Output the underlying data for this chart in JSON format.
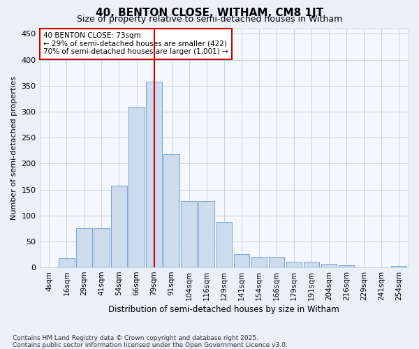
{
  "title": "40, BENTON CLOSE, WITHAM, CM8 1JT",
  "subtitle": "Size of property relative to semi-detached houses in Witham",
  "xlabel": "Distribution of semi-detached houses by size in Witham",
  "ylabel": "Number of semi-detached properties",
  "categories": [
    "4sqm",
    "16sqm",
    "29sqm",
    "41sqm",
    "54sqm",
    "66sqm",
    "79sqm",
    "91sqm",
    "104sqm",
    "116sqm",
    "129sqm",
    "141sqm",
    "154sqm",
    "166sqm",
    "179sqm",
    "191sqm",
    "204sqm",
    "216sqm",
    "229sqm",
    "241sqm",
    "254sqm"
  ],
  "values": [
    0,
    18,
    75,
    75,
    158,
    310,
    358,
    218,
    128,
    128,
    87,
    25,
    20,
    20,
    11,
    11,
    7,
    4,
    0,
    0,
    3
  ],
  "bar_color": "#ccdcec",
  "bar_edge_color": "#6699cc",
  "vline_x": 6.0,
  "vline_color": "#cc0000",
  "annotation_text": "40 BENTON CLOSE: 73sqm\n← 29% of semi-detached houses are smaller (422)\n70% of semi-detached houses are larger (1,001) →",
  "ylim": [
    0,
    460
  ],
  "yticks": [
    0,
    50,
    100,
    150,
    200,
    250,
    300,
    350,
    400,
    450
  ],
  "footnote": "Contains HM Land Registry data © Crown copyright and database right 2025.\nContains public sector information licensed under the Open Government Licence v3.0.",
  "background_color": "#eaf0f6",
  "plot_background_color": "#f4f8fc",
  "grid_color": "#b8cfe0",
  "title_fontsize": 11,
  "subtitle_fontsize": 9,
  "footnote_fontsize": 6.5
}
